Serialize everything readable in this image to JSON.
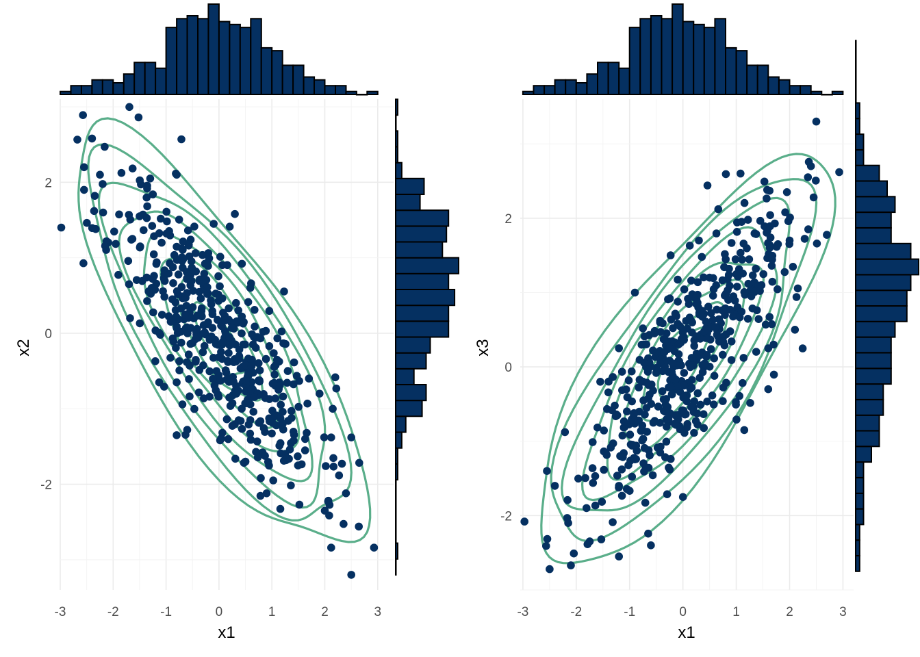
{
  "chart_data": [
    {
      "type": "scatter",
      "subtype": "marginal-histogram-with-density-contours",
      "xlabel": "x1",
      "ylabel": "x2",
      "xlim": [
        -3.0,
        3.3
      ],
      "ylim": [
        -3.4,
        3.1
      ],
      "xticks": [
        -3,
        -2,
        -1,
        0,
        1,
        2,
        3
      ],
      "yticks": [
        -2,
        0,
        2
      ],
      "grid": true,
      "correlation_sign": -1,
      "point_color": "#053061",
      "contour_color": "#5aae8a",
      "histogram_fill": "#053061",
      "top_histogram": {
        "bin_edges_start": -3.0,
        "bin_width": 0.2,
        "counts": [
          1,
          3,
          3,
          5,
          5,
          4,
          7,
          11,
          11,
          9,
          23,
          26,
          27,
          26,
          31,
          25,
          24,
          23,
          26,
          16,
          15,
          10,
          10,
          6,
          5,
          3,
          3,
          1,
          0,
          1
        ]
      },
      "right_histogram": {
        "bin_edges_start": -3.2,
        "bin_width": 0.21,
        "counts": [
          0,
          1,
          0,
          0,
          0,
          0,
          1,
          1,
          3,
          5,
          13,
          15,
          9,
          15,
          17,
          26,
          26,
          29,
          26,
          31,
          23,
          25,
          26,
          12,
          14,
          3,
          1,
          1,
          0,
          1
        ]
      },
      "points": [
        {
          "x": -2.57,
          "y": 2.89
        },
        {
          "x": -1.52,
          "y": 2.86
        },
        {
          "x": -0.71,
          "y": 2.57
        },
        {
          "x": -2.4,
          "y": 2.58
        },
        {
          "x": -2.16,
          "y": 2.47
        },
        {
          "x": -2.55,
          "y": 2.2
        },
        {
          "x": -2.25,
          "y": 2.1
        },
        {
          "x": -0.8,
          "y": 2.1
        },
        {
          "x": -1.3,
          "y": 2.05
        },
        {
          "x": -2.55,
          "y": 1.9
        },
        {
          "x": -2.98,
          "y": 1.4
        },
        {
          "x": -1.25,
          "y": 1.84
        },
        {
          "x": -2.36,
          "y": 1.62
        },
        {
          "x": -2.19,
          "y": 1.6
        },
        {
          "x": 0.3,
          "y": 1.58
        },
        {
          "x": -1.5,
          "y": 1.55
        },
        {
          "x": -0.1,
          "y": 1.45
        },
        {
          "x": -2.33,
          "y": 1.38
        },
        {
          "x": 2.12,
          "y": -1.38
        },
        {
          "x": 2.5,
          "y": -1.38
        },
        {
          "x": 1.52,
          "y": -2.27
        },
        {
          "x": 2.0,
          "y": -2.35
        },
        {
          "x": 2.4,
          "y": -2.12
        },
        {
          "x": 2.12,
          "y": -2.84
        },
        {
          "x": 2.93,
          "y": -2.84
        },
        {
          "x": 2.5,
          "y": -3.2
        },
        {
          "x": 0.9,
          "y": -2.12
        },
        {
          "x": -0.6,
          "y": -1.28
        },
        {
          "x": -0.8,
          "y": -1.35
        },
        {
          "x": -1.13,
          "y": -0.65
        },
        {
          "x": -0.8,
          "y": -0.65
        },
        {
          "x": -1.7,
          "y": 0.65
        },
        {
          "x": -1.68,
          "y": 0.2
        },
        {
          "x": 1.3,
          "y": -0.5
        },
        {
          "x": 1.7,
          "y": -0.6
        },
        {
          "x": 1.9,
          "y": -0.8
        },
        {
          "x": 2.15,
          "y": -1.0
        },
        {
          "x": 1.25,
          "y": -1.6
        },
        {
          "x": 0.5,
          "y": -1.7
        }
      ],
      "density_contour_levels": 8
    },
    {
      "type": "scatter",
      "subtype": "marginal-histogram-with-density-contours",
      "xlabel": "x1",
      "ylabel": "x3",
      "xlim": [
        -3.05,
        3.2
      ],
      "ylim": [
        -3.0,
        3.6
      ],
      "xticks": [
        -3,
        -2,
        -1,
        0,
        1,
        2,
        3
      ],
      "yticks": [
        -2,
        0,
        2
      ],
      "grid": true,
      "correlation_sign": 1,
      "point_color": "#053061",
      "contour_color": "#5aae8a",
      "histogram_fill": "#053061",
      "top_histogram": {
        "bin_edges_start": -3.0,
        "bin_width": 0.2,
        "counts": [
          1,
          3,
          3,
          5,
          5,
          4,
          7,
          11,
          11,
          9,
          23,
          26,
          27,
          26,
          31,
          25,
          24,
          23,
          26,
          16,
          15,
          10,
          10,
          6,
          5,
          3,
          3,
          1,
          0,
          1
        ]
      },
      "right_histogram": {
        "bin_edges_start": -2.75,
        "bin_width": 0.21,
        "counts": [
          1,
          1,
          1,
          2,
          2,
          2,
          2,
          4,
          6,
          6,
          7,
          7,
          9,
          9,
          9,
          10,
          13,
          13,
          14,
          16,
          14,
          9,
          9,
          10,
          8,
          6,
          2,
          2,
          1,
          1,
          0,
          0,
          0,
          0
        ]
      },
      "points": [
        {
          "x": 2.5,
          "y": 3.3
        },
        {
          "x": 1.08,
          "y": 2.6
        },
        {
          "x": 2.93,
          "y": 2.62
        },
        {
          "x": 2.4,
          "y": 2.7
        },
        {
          "x": 2.45,
          "y": 2.28
        },
        {
          "x": 2.35,
          "y": 1.85
        },
        {
          "x": 1.58,
          "y": 2.38
        },
        {
          "x": 1.95,
          "y": 2.35
        },
        {
          "x": 1.1,
          "y": 1.95
        },
        {
          "x": 2.0,
          "y": 1.7
        },
        {
          "x": 1.6,
          "y": 0.25
        },
        {
          "x": 2.1,
          "y": 0.5
        },
        {
          "x": -2.97,
          "y": -2.08
        },
        {
          "x": -2.5,
          "y": -2.72
        },
        {
          "x": -2.1,
          "y": -2.67
        },
        {
          "x": -1.2,
          "y": -2.55
        },
        {
          "x": -0.6,
          "y": -2.4
        },
        {
          "x": -1.53,
          "y": -2.32
        },
        {
          "x": -2.15,
          "y": -2.1
        },
        {
          "x": -2.55,
          "y": -1.4
        },
        {
          "x": -2.4,
          "y": -1.6
        },
        {
          "x": 0.0,
          "y": -1.75
        },
        {
          "x": -1.2,
          "y": -1.6
        },
        {
          "x": 1.15,
          "y": -0.85
        },
        {
          "x": 1.6,
          "y": -0.3
        },
        {
          "x": 1.7,
          "y": 0.3
        },
        {
          "x": -1.2,
          "y": 0.25
        },
        {
          "x": -1.55,
          "y": -0.2
        },
        {
          "x": -0.9,
          "y": 1.0
        },
        {
          "x": 0.5,
          "y": 1.2
        },
        {
          "x": -0.23,
          "y": 1.5
        },
        {
          "x": 0.3,
          "y": 1.7
        }
      ],
      "density_contour_levels": 8
    }
  ],
  "colors": {
    "points": "#053061",
    "contours": "#5aae8a",
    "histogram_fill": "#053061",
    "histogram_edge": "#000000",
    "grid": "#ebebeb",
    "tick_text": "#4d4d4d"
  }
}
